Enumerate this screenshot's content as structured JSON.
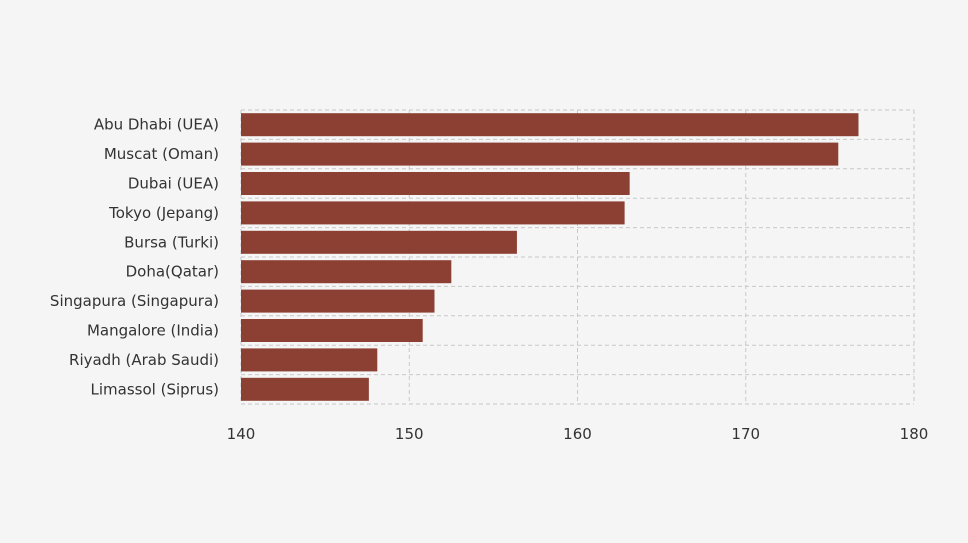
{
  "chart_data": {
    "type": "bar",
    "orientation": "horizontal",
    "categories": [
      "Abu Dhabi (UEA)",
      "Muscat (Oman)",
      "Dubai (UEA)",
      "Tokyo (Jepang)",
      "Bursa (Turki)",
      "Doha(Qatar)",
      "Singapura (Singapura)",
      "Mangalore (India)",
      "Riyadh (Arab Saudi)",
      "Limassol (Siprus)"
    ],
    "values": [
      176.7,
      175.5,
      163.1,
      162.8,
      156.4,
      152.5,
      151.5,
      150.8,
      148.1,
      147.6
    ],
    "xlim": [
      140,
      180
    ],
    "xticks": [
      "140",
      "150",
      "160",
      "170",
      "180"
    ],
    "tick_values": [
      140,
      150,
      160,
      170,
      180
    ],
    "title": "",
    "xlabel": "",
    "ylabel": "",
    "grid": true,
    "bar_color": "#8b4033",
    "background_color": "#f5f5f5"
  }
}
